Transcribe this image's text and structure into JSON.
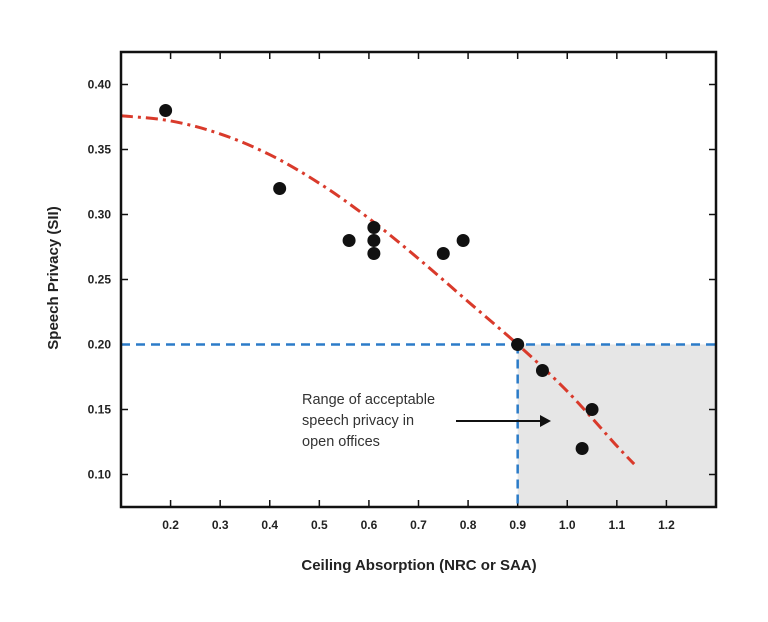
{
  "chart_data": {
    "type": "scatter",
    "xlabel": "Ceiling Absorption (NRC or SAA)",
    "ylabel": "Speech Privacy (SII)",
    "xlim": [
      0.1,
      1.3
    ],
    "ylim": [
      0.075,
      0.425
    ],
    "x_ticks": [
      0.2,
      0.3,
      0.4,
      0.5,
      0.6,
      0.7,
      0.8,
      0.9,
      1.0,
      1.1,
      1.2
    ],
    "x_tick_labels": [
      "0.2",
      "0.3",
      "0.4",
      "0.5",
      "0.6",
      "0.7",
      "0.8",
      "0.9",
      "1.0",
      "1.1",
      "1.2"
    ],
    "y_ticks": [
      0.1,
      0.15,
      0.2,
      0.25,
      0.3,
      0.35,
      0.4
    ],
    "y_tick_labels": [
      "0.10",
      "0.15",
      "0.20",
      "0.25",
      "0.30",
      "0.35",
      "0.40"
    ],
    "grid": false,
    "points": [
      {
        "x": 0.19,
        "y": 0.38
      },
      {
        "x": 0.42,
        "y": 0.32
      },
      {
        "x": 0.56,
        "y": 0.28
      },
      {
        "x": 0.61,
        "y": 0.29
      },
      {
        "x": 0.61,
        "y": 0.28
      },
      {
        "x": 0.61,
        "y": 0.27
      },
      {
        "x": 0.75,
        "y": 0.27
      },
      {
        "x": 0.79,
        "y": 0.28
      },
      {
        "x": 0.9,
        "y": 0.2
      },
      {
        "x": 0.95,
        "y": 0.18
      },
      {
        "x": 1.05,
        "y": 0.15
      },
      {
        "x": 1.03,
        "y": 0.12
      }
    ],
    "trend_line": {
      "style": "dash-dot",
      "color": "#d93a2b",
      "x": [
        0.1,
        0.2,
        0.3,
        0.4,
        0.5,
        0.6,
        0.7,
        0.8,
        0.9,
        1.0,
        1.1,
        1.135
      ],
      "y": [
        0.376,
        0.372,
        0.362,
        0.346,
        0.324,
        0.297,
        0.266,
        0.233,
        0.2,
        0.164,
        0.122,
        0.108
      ]
    },
    "threshold": {
      "x": 0.9,
      "y": 0.2,
      "color": "#2b7bc8",
      "region_color": "#e6e6e6"
    },
    "annotation": {
      "lines": [
        "Range of acceptable",
        "speech privacy in",
        "open offices"
      ]
    },
    "colors": {
      "points": "#111111",
      "axes": "#111111"
    }
  }
}
